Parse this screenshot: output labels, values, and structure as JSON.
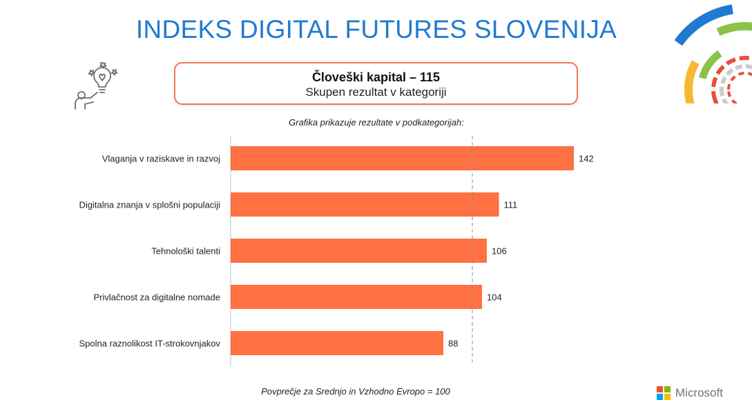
{
  "header": {
    "title": "INDEKS DIGITAL FUTURES SLOVENIJA"
  },
  "kpi": {
    "title": "Človeški kapital – 115",
    "subtitle": "Skupen rezultat v kategoriji"
  },
  "caption": "Grafika prikazuje rezultate v podkategorijah:",
  "footnote": "Povprečje za Srednjo in Vzhodno Evropo = 100",
  "logo": {
    "text": "Microsoft",
    "colors": [
      "#f25022",
      "#7fba00",
      "#00a4ef",
      "#ffb900"
    ]
  },
  "icons": {
    "kpi": "person-lightbulb-icon",
    "corner": "arc-rings-decoration"
  },
  "chart_data": {
    "type": "bar",
    "orientation": "horizontal",
    "categories": [
      "Vlaganja v raziskave in razvoj",
      "Digitalna znanja v splošni populaciji",
      "Tehnološki talenti",
      "Privlačnost za digitalne nomade",
      "Spolna raznolikost IT-strokovnjakov"
    ],
    "values": [
      142,
      111,
      106,
      104,
      88
    ],
    "reference_line": 100,
    "xlim": [
      0,
      150
    ],
    "bar_color": "#ff7043",
    "data_labels": true,
    "grid": false,
    "title": "",
    "xlabel": "",
    "ylabel": ""
  }
}
